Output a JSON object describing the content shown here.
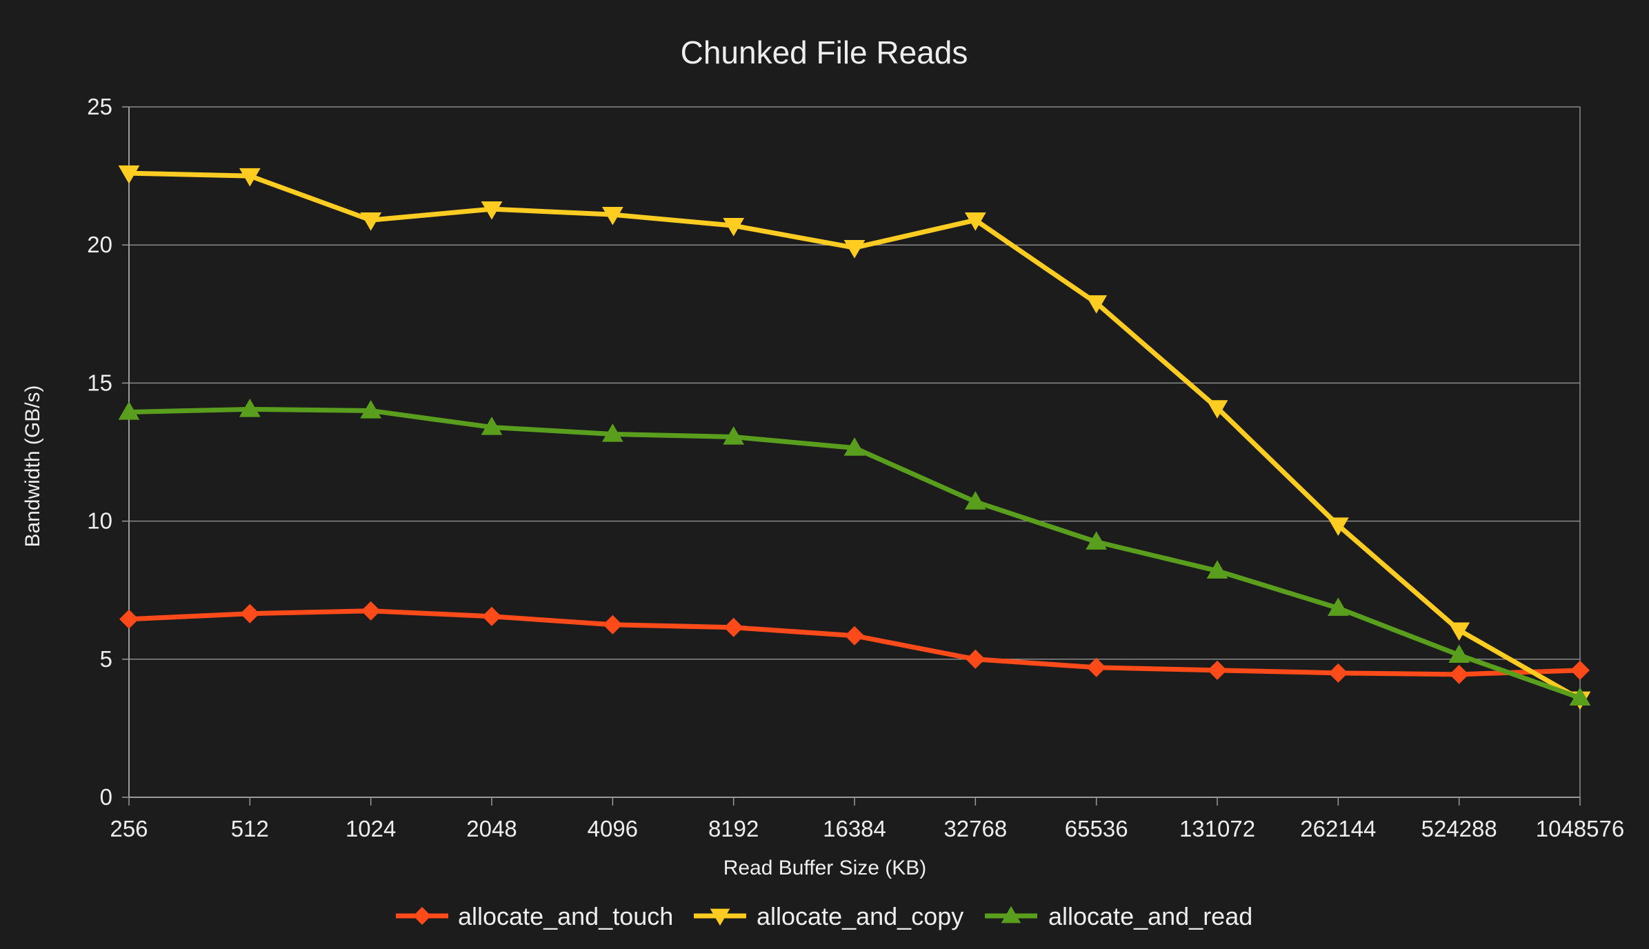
{
  "chart_data": {
    "type": "line",
    "title": "Chunked File Reads",
    "xlabel": "Read Buffer Size (KB)",
    "ylabel": "Bandwidth (GB/s)",
    "x_scale": "log2 (categorical ticks)",
    "categories": [
      "256",
      "512",
      "1024",
      "2048",
      "4096",
      "8192",
      "16384",
      "32768",
      "65536",
      "131072",
      "262144",
      "524288",
      "1048576"
    ],
    "ylim": [
      0,
      25
    ],
    "yticks": [
      0,
      5,
      10,
      15,
      20,
      25
    ],
    "grid": "horizontal",
    "legend": "bottom",
    "series": [
      {
        "name": "allocate_and_touch",
        "color": "#ff4a1a",
        "marker": "diamond",
        "values": [
          6.45,
          6.65,
          6.75,
          6.55,
          6.25,
          6.15,
          5.85,
          5.0,
          4.7,
          4.6,
          4.5,
          4.45,
          4.6
        ]
      },
      {
        "name": "allocate_and_copy",
        "color": "#ffcc22",
        "marker": "triangle-down",
        "values": [
          22.6,
          22.5,
          20.9,
          21.3,
          21.1,
          20.7,
          19.9,
          20.9,
          17.9,
          14.1,
          9.85,
          6.05,
          3.55
        ]
      },
      {
        "name": "allocate_and_read",
        "color": "#5a9e1e",
        "marker": "triangle-up",
        "values": [
          13.95,
          14.05,
          14.0,
          13.4,
          13.15,
          13.05,
          12.65,
          10.7,
          9.25,
          8.2,
          6.85,
          5.15,
          3.6
        ]
      }
    ]
  }
}
